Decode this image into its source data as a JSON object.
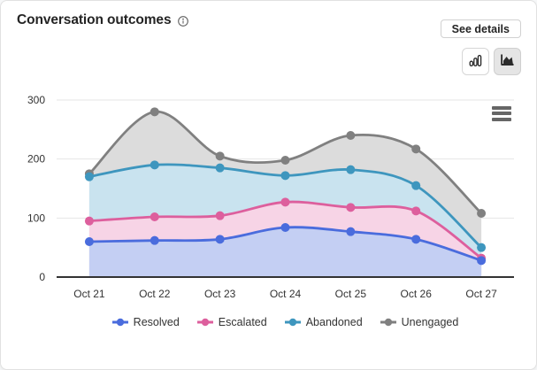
{
  "header": {
    "title": "Conversation outcomes",
    "see_details_label": "See details"
  },
  "toolbar": {
    "icons": [
      "column-chart-icon",
      "area-chart-icon"
    ],
    "selected_chart_type": "area",
    "menu_icon": "hamburger-menu"
  },
  "colors": {
    "resolved": "#4a6cdd",
    "resolved_fill": "#c4cff3",
    "escalated": "#dd5f9d",
    "escalated_fill": "#f7d4e6",
    "abandoned": "#3e96be",
    "abandoned_fill": "#c9e3ef",
    "unengaged": "#808080",
    "unengaged_fill": "#dcdcdc",
    "axis_line": "#333333",
    "gridline": "#e6e6e6"
  },
  "chart_data": {
    "type": "area",
    "title": "Conversation outcomes",
    "categories": [
      "Oct 21",
      "Oct 22",
      "Oct 23",
      "Oct 24",
      "Oct 25",
      "Oct 26",
      "Oct 27"
    ],
    "series": [
      {
        "name": "Unengaged",
        "color": "#808080",
        "fill": "#dcdcdc",
        "values": [
          175,
          280,
          205,
          198,
          240,
          217,
          108
        ]
      },
      {
        "name": "Abandoned",
        "color": "#3e96be",
        "fill": "#c9e3ef",
        "values": [
          170,
          190,
          185,
          172,
          182,
          155,
          50
        ]
      },
      {
        "name": "Escalated",
        "color": "#dd5f9d",
        "fill": "#f7d4e6",
        "values": [
          95,
          102,
          104,
          127,
          118,
          112,
          32
        ]
      },
      {
        "name": "Resolved",
        "color": "#4a6cdd",
        "fill": "#c4cff3",
        "values": [
          60,
          62,
          64,
          84,
          77,
          64,
          28
        ]
      }
    ],
    "legend": [
      "Resolved",
      "Escalated",
      "Abandoned",
      "Unengaged"
    ],
    "xlabel": "",
    "ylabel": "",
    "ylim": [
      0,
      300
    ],
    "yticks": [
      0,
      100,
      200,
      300
    ],
    "grid": "horizontal",
    "legend_position": "bottom",
    "line_style": "spline",
    "markers": true
  }
}
